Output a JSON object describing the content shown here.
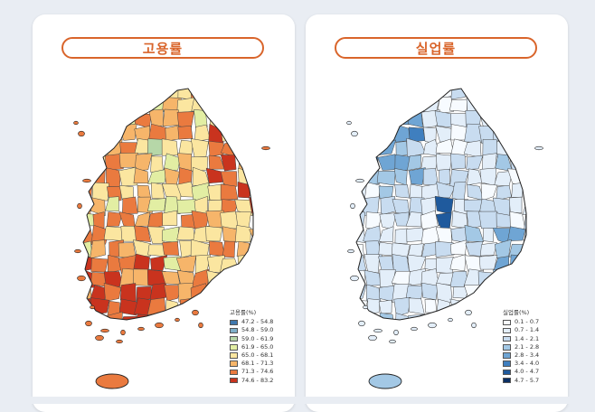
{
  "panels": [
    {
      "title": "고용률",
      "legend_title": "고용률(%)",
      "accent": "#d9652b",
      "legend": [
        {
          "label": "47.2 - 54.8",
          "color": "#3f78ad"
        },
        {
          "label": "54.8 - 59.0",
          "color": "#7fb0c9"
        },
        {
          "label": "59.0 - 61.9",
          "color": "#b6d7a8"
        },
        {
          "label": "61.9 - 65.0",
          "color": "#e2eea3"
        },
        {
          "label": "65.0 - 68.1",
          "color": "#fbe6a0"
        },
        {
          "label": "68.1 - 71.3",
          "color": "#f6b56a"
        },
        {
          "label": "71.3 - 74.6",
          "color": "#ea7a3f"
        },
        {
          "label": "74.6 - 83.2",
          "color": "#c9331e"
        }
      ]
    },
    {
      "title": "실업률",
      "legend_title": "실업률(%)",
      "accent": "#d9652b",
      "legend": [
        {
          "label": "0.1 - 0.7",
          "color": "#f7fbff"
        },
        {
          "label": "0.7 - 1.4",
          "color": "#e3eef9"
        },
        {
          "label": "1.4 - 2.1",
          "color": "#c8dcf0"
        },
        {
          "label": "2.1 - 2.8",
          "color": "#a3c8e5"
        },
        {
          "label": "2.8 - 3.4",
          "color": "#6fa5d4"
        },
        {
          "label": "3.4 - 4.0",
          "color": "#3f7fbf"
        },
        {
          "label": "4.0 - 4.7",
          "color": "#1f5a9d"
        },
        {
          "label": "4.7 - 5.7",
          "color": "#0b2f63"
        }
      ]
    }
  ]
}
